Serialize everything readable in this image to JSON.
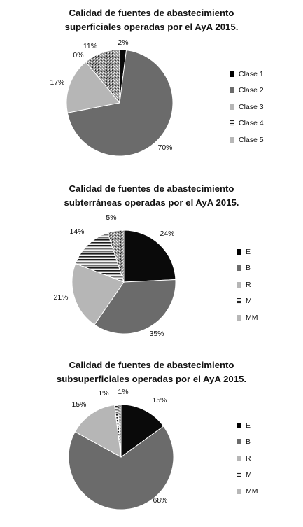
{
  "chart_data": [
    {
      "type": "pie",
      "title_lines": [
        "Calidad de fuentes de abastecimiento",
        "superficiales operadas por el AyA 2015."
      ],
      "categories": [
        "Clase 1",
        "Clase 2",
        "Clase 3",
        "Clase 4",
        "Clase 5"
      ],
      "values": [
        2,
        70,
        17,
        0,
        11
      ],
      "labels": [
        "2%",
        "70%",
        "17%",
        "0%",
        "11%"
      ],
      "fills": [
        "#0a0a0a",
        "#6b6b6b",
        "#b6b6b6",
        "stripes",
        "speckle"
      ],
      "legend": "right"
    },
    {
      "type": "pie",
      "title_lines": [
        "Calidad de fuentes de abastecimiento",
        "subterráneas operadas por el AyA 2015."
      ],
      "categories": [
        "E",
        "B",
        "R",
        "M",
        "MM"
      ],
      "values": [
        24,
        35,
        21,
        14,
        5
      ],
      "labels": [
        "24%",
        "35%",
        "21%",
        "14%",
        "5%"
      ],
      "fills": [
        "#0a0a0a",
        "#6b6b6b",
        "#b6b6b6",
        "stripes",
        "speckle"
      ],
      "legend": "right"
    },
    {
      "type": "pie",
      "title_lines": [
        "Calidad de fuentes de abastecimiento",
        "subsuperficiales operadas por el AyA 2015."
      ],
      "categories": [
        "E",
        "B",
        "R",
        "M",
        "MM"
      ],
      "values": [
        15,
        68,
        15,
        1,
        1
      ],
      "labels": [
        "15%",
        "68%",
        "15%",
        "1%",
        "1%"
      ],
      "fills": [
        "#0a0a0a",
        "#6b6b6b",
        "#b6b6b6",
        "stripes",
        "speckle"
      ],
      "legend": "right"
    }
  ]
}
